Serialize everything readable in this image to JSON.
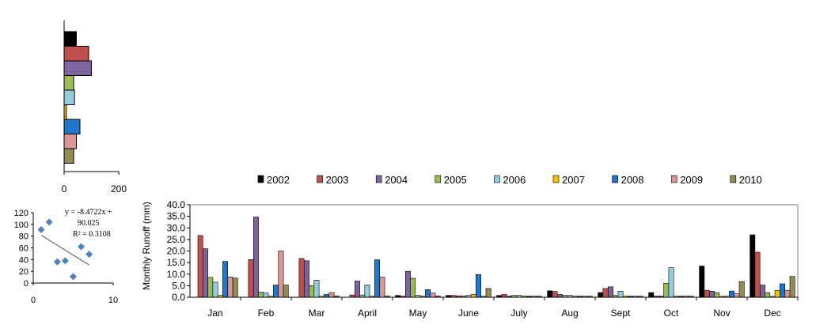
{
  "chart_data": [
    {
      "type": "bar",
      "orientation": "horizontal",
      "categories": [
        "2002",
        "2003",
        "2004",
        "2005",
        "2006",
        "2007",
        "2008",
        "2009",
        "2010"
      ],
      "values": [
        45,
        90,
        100,
        35,
        38,
        8,
        58,
        45,
        35
      ],
      "xlim": [
        0,
        200
      ],
      "xticks": [
        "0",
        "200"
      ],
      "colors": [
        "#000000",
        "#C0504D",
        "#8064A2",
        "#9BBB59",
        "#93CDDD",
        "#F9C000",
        "#1F77C9",
        "#D99694",
        "#948A54"
      ]
    },
    {
      "type": "scatter",
      "x": [
        1,
        2,
        3,
        4,
        5,
        6,
        7
      ],
      "y": [
        91,
        104,
        36,
        38,
        11,
        62,
        49
      ],
      "xlim": [
        0,
        10
      ],
      "ylim": [
        0,
        120
      ],
      "xticks": [
        "0",
        "10"
      ],
      "yticks": [
        "0",
        "20",
        "40",
        "60",
        "80",
        "100",
        "120"
      ],
      "trendline": {
        "slope": -8.4722,
        "intercept": 90.025,
        "x_range": [
          1,
          7
        ]
      },
      "annotation_lines": [
        "y = -8.4722x +",
        "90.025",
        "R² = 0.3108"
      ],
      "marker_color": "#4F81BD"
    },
    {
      "type": "bar",
      "categories": [
        "Jan",
        "Feb",
        "Mar",
        "April",
        "May",
        "June",
        "July",
        "Aug",
        "Sept",
        "Oct",
        "Nov",
        "Dec"
      ],
      "ylabel": "Monthly  Runoff (mm)",
      "ylim": [
        0,
        40
      ],
      "yticks": [
        "0.0",
        "5.0",
        "10.0",
        "15.0",
        "20.0",
        "25.0",
        "30.0",
        "35.0",
        "40.0"
      ],
      "legend_position": "top",
      "series": [
        {
          "name": "2002",
          "color": "#000000",
          "values": [
            0,
            0,
            0,
            0,
            0.8,
            0.8,
            0.8,
            2.8,
            2.0,
            2.0,
            13.5,
            27.0
          ]
        },
        {
          "name": "2003",
          "color": "#C0504D",
          "values": [
            26.7,
            16.3,
            16.8,
            1.0,
            0.5,
            0.8,
            1.2,
            2.5,
            3.8,
            0.5,
            3.0,
            19.5
          ]
        },
        {
          "name": "2004",
          "color": "#8064A2",
          "values": [
            21.0,
            34.7,
            15.8,
            7.0,
            11.2,
            0.6,
            0.5,
            1.2,
            4.5,
            0.5,
            2.6,
            5.3
          ]
        },
        {
          "name": "2005",
          "color": "#9BBB59",
          "values": [
            8.6,
            2.2,
            5.0,
            1.0,
            8.2,
            0.6,
            0.8,
            0.8,
            0.8,
            6.0,
            2.0,
            2.0
          ]
        },
        {
          "name": "2006",
          "color": "#93CDDD",
          "values": [
            6.5,
            1.8,
            7.4,
            5.3,
            0.8,
            0.8,
            0.8,
            0.8,
            2.6,
            12.8,
            0.4,
            0.4
          ]
        },
        {
          "name": "2007",
          "color": "#F9C000",
          "values": [
            0.8,
            0.5,
            0.5,
            0.5,
            0.5,
            1.2,
            0.5,
            0.5,
            0.5,
            0.5,
            0.5,
            3.0
          ]
        },
        {
          "name": "2008",
          "color": "#1F77C9",
          "values": [
            15.5,
            5.3,
            1.2,
            16.2,
            3.3,
            9.8,
            0.5,
            0.5,
            0.5,
            0.5,
            2.7,
            5.8
          ]
        },
        {
          "name": "2009",
          "color": "#D99694",
          "values": [
            8.8,
            20.0,
            2.0,
            8.7,
            1.8,
            0.5,
            0.5,
            0.5,
            0.5,
            0.6,
            1.5,
            3.0
          ]
        },
        {
          "name": "2010",
          "color": "#948A54",
          "values": [
            8.3,
            5.3,
            0.6,
            0.6,
            0.6,
            3.8,
            0.5,
            0.5,
            0.5,
            0.5,
            6.8,
            9.0
          ]
        }
      ]
    }
  ]
}
